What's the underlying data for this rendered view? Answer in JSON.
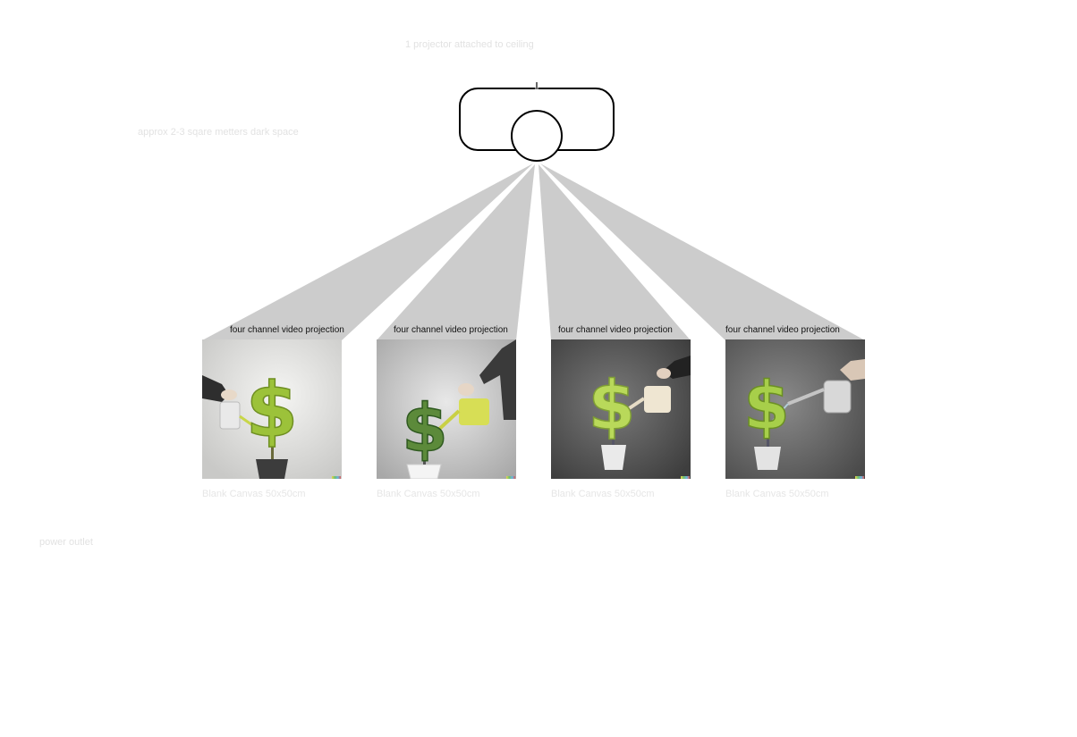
{
  "labels": {
    "projector_note": "1 projector attached to ceiling",
    "space_note": "approx 2-3 sqare metters dark space",
    "power_note": "power outlet"
  },
  "projection_label": "four channel video projection",
  "canvases": [
    {
      "label": "Blank Canvas 50x50cm",
      "background": "light-grey",
      "pot": "dark",
      "can": "small-silver",
      "hand": "left"
    },
    {
      "label": "Blank Canvas 50x50cm",
      "background": "grey",
      "pot": "white",
      "can": "yellow",
      "hand": "right"
    },
    {
      "label": "Blank Canvas 50x50cm",
      "background": "dark-grey",
      "pot": "white",
      "can": "cream",
      "hand": "right"
    },
    {
      "label": "Blank Canvas 50x50cm",
      "background": "mid-grey",
      "pot": "white",
      "can": "silver",
      "hand": "right"
    }
  ],
  "colors": {
    "beam": "#cccccc",
    "projector_outline": "#000000",
    "faint_text": "#e2e2e2",
    "plant": "#9cc23a"
  },
  "icons": {
    "projector": "projector-icon",
    "plant": "dollar-plant-image"
  }
}
